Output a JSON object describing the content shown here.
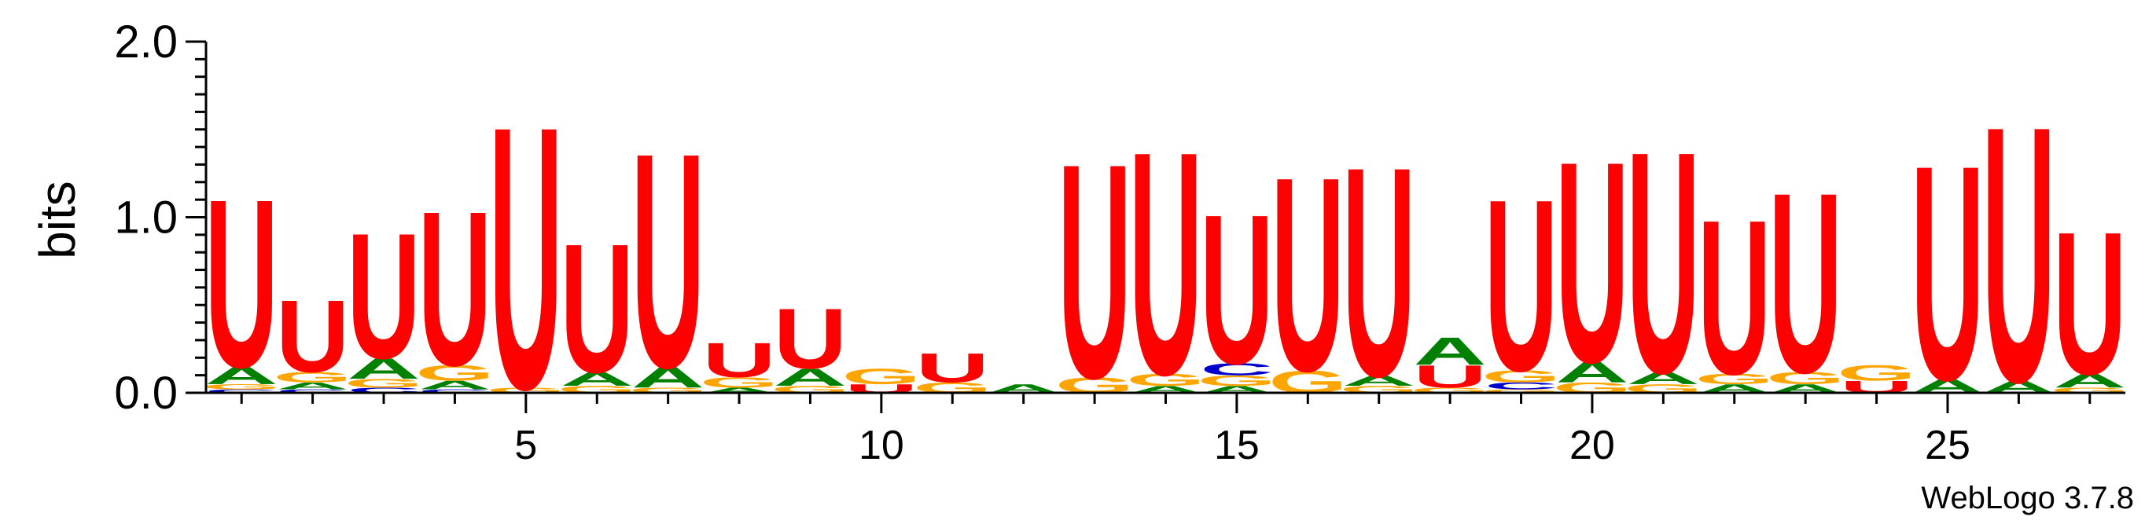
{
  "chart_data": {
    "type": "sequence-logo",
    "ylabel": "bits",
    "ylim": [
      0,
      2.0
    ],
    "y_ticks": [
      "0.0",
      "1.0",
      "2.0"
    ],
    "x_ticks": [
      5,
      10,
      15,
      20,
      25
    ],
    "positions": [
      1,
      2,
      3,
      4,
      5,
      6,
      7,
      8,
      9,
      10,
      11,
      12,
      13,
      14,
      15,
      16,
      17,
      18,
      19,
      20,
      21,
      22,
      23,
      24,
      25,
      26,
      27
    ],
    "colors": {
      "A": "#008000",
      "C": "#0000cc",
      "G": "#ffa500",
      "U": "#ff0000"
    },
    "stacks": [
      [
        [
          "C",
          0.02
        ],
        [
          "G",
          0.03
        ],
        [
          "A",
          0.1
        ],
        [
          "U",
          0.98
        ]
      ],
      [
        [
          "C",
          0.02
        ],
        [
          "A",
          0.04
        ],
        [
          "G",
          0.06
        ],
        [
          "U",
          0.42
        ]
      ],
      [
        [
          "C",
          0.03
        ],
        [
          "G",
          0.05
        ],
        [
          "A",
          0.12
        ],
        [
          "U",
          0.73
        ]
      ],
      [
        [
          "C",
          0.02
        ],
        [
          "A",
          0.05
        ],
        [
          "G",
          0.09
        ],
        [
          "U",
          0.9
        ]
      ],
      [
        [
          "G",
          0.03
        ],
        [
          "U",
          1.53
        ]
      ],
      [
        [
          "G",
          0.04
        ],
        [
          "A",
          0.08
        ],
        [
          "U",
          0.75
        ]
      ],
      [
        [
          "G",
          0.03
        ],
        [
          "A",
          0.12
        ],
        [
          "U",
          1.25
        ]
      ],
      [
        [
          "A",
          0.03
        ],
        [
          "G",
          0.06
        ],
        [
          "U",
          0.2
        ]
      ],
      [
        [
          "G",
          0.04
        ],
        [
          "A",
          0.1
        ],
        [
          "U",
          0.35
        ]
      ],
      [
        [
          "U",
          0.05
        ],
        [
          "G",
          0.09
        ]
      ],
      [
        [
          "G",
          0.06
        ],
        [
          "U",
          0.17
        ]
      ],
      [
        [
          "A",
          0.05
        ]
      ],
      [
        [
          "G",
          0.09
        ],
        [
          "U",
          1.25
        ]
      ],
      [
        [
          "A",
          0.04
        ],
        [
          "G",
          0.07
        ],
        [
          "U",
          1.3
        ]
      ],
      [
        [
          "A",
          0.04
        ],
        [
          "G",
          0.06
        ],
        [
          "C",
          0.07
        ],
        [
          "U",
          0.87
        ]
      ],
      [
        [
          "G",
          0.13
        ],
        [
          "U",
          1.13
        ]
      ],
      [
        [
          "G",
          0.04
        ],
        [
          "A",
          0.06
        ],
        [
          "U",
          1.22
        ]
      ],
      [
        [
          "G",
          0.03
        ],
        [
          "U",
          0.13
        ],
        [
          "A",
          0.16
        ]
      ],
      [
        [
          "G",
          0.02
        ],
        [
          "C",
          0.04
        ],
        [
          "G",
          0.07
        ],
        [
          "U",
          1.0
        ]
      ],
      [
        [
          "G",
          0.06
        ],
        [
          "A",
          0.12
        ],
        [
          "U",
          1.17
        ]
      ],
      [
        [
          "G",
          0.05
        ],
        [
          "A",
          0.07
        ],
        [
          "U",
          1.29
        ]
      ],
      [
        [
          "A",
          0.05
        ],
        [
          "G",
          0.06
        ],
        [
          "U",
          0.9
        ]
      ],
      [
        [
          "A",
          0.05
        ],
        [
          "G",
          0.07
        ],
        [
          "U",
          1.05
        ]
      ],
      [
        [
          "U",
          0.07
        ],
        [
          "G",
          0.09
        ]
      ],
      [
        [
          "A",
          0.08
        ],
        [
          "U",
          1.25
        ]
      ],
      [
        [
          "A",
          0.07
        ],
        [
          "U",
          1.49
        ]
      ],
      [
        [
          "G",
          0.03
        ],
        [
          "A",
          0.08
        ],
        [
          "U",
          0.83
        ]
      ]
    ]
  },
  "footer": {
    "credit": "WebLogo 3.7.8"
  }
}
